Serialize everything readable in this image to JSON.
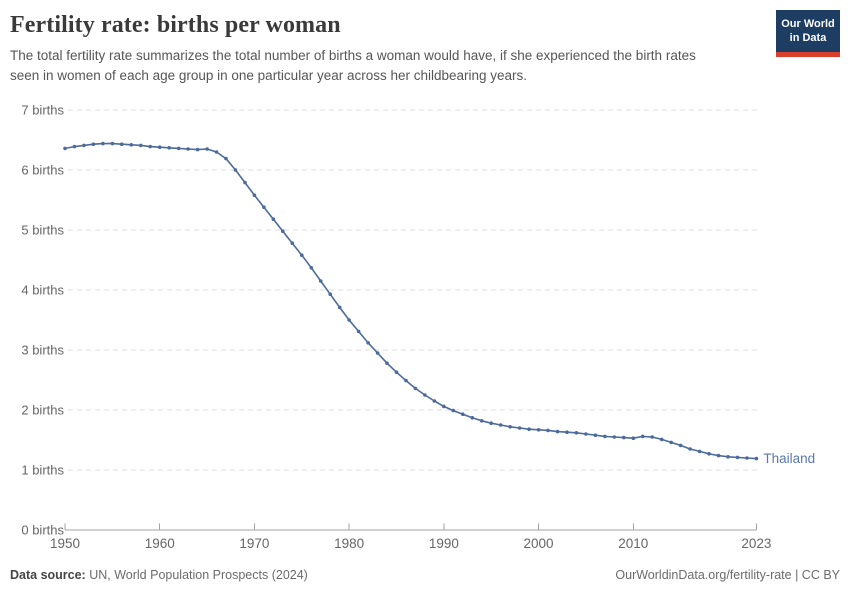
{
  "header": {
    "title": "Fertility rate: births per woman",
    "subtitle": "The total fertility rate summarizes the total number of births a woman would have, if she experienced the birth rates seen in women of each age group in one particular year across her childbearing years."
  },
  "logo": {
    "line1": "Our World",
    "line2": "in Data"
  },
  "footer": {
    "datasource_label": "Data source:",
    "datasource_text": "UN, World Population Prospects (2024)",
    "rights": "OurWorldinData.org/fertility-rate | CC BY"
  },
  "colors": {
    "line": "#4c6a9c",
    "entity_label": "#5879ae",
    "grid": "#dcdcdc",
    "axis": "#a1a1a1",
    "text_muted": "#666666",
    "logo_bg": "#1d3d63",
    "logo_bar": "#d93d2c"
  },
  "chart_data": {
    "type": "line",
    "title": "Fertility rate: births per woman",
    "xlabel": "",
    "ylabel": "births",
    "xlim": [
      1950,
      2023
    ],
    "ylim": [
      0,
      7
    ],
    "grid": "horizontal-dashed",
    "legend_position": "end-of-line-label",
    "end_label": "Thailand",
    "x_ticks": [
      {
        "value": 1950,
        "label": "1950"
      },
      {
        "value": 1960,
        "label": "1960"
      },
      {
        "value": 1970,
        "label": "1970"
      },
      {
        "value": 1980,
        "label": "1980"
      },
      {
        "value": 1990,
        "label": "1990"
      },
      {
        "value": 2000,
        "label": "2000"
      },
      {
        "value": 2010,
        "label": "2010"
      },
      {
        "value": 2023,
        "label": "2023"
      }
    ],
    "y_ticks": [
      {
        "value": 0,
        "label": "0 births"
      },
      {
        "value": 1,
        "label": "1 births"
      },
      {
        "value": 2,
        "label": "2 births"
      },
      {
        "value": 3,
        "label": "3 births"
      },
      {
        "value": 4,
        "label": "4 births"
      },
      {
        "value": 5,
        "label": "5 births"
      },
      {
        "value": 6,
        "label": "6 births"
      },
      {
        "value": 7,
        "label": "7 births"
      }
    ],
    "x": [
      1950,
      1951,
      1952,
      1953,
      1954,
      1955,
      1956,
      1957,
      1958,
      1959,
      1960,
      1961,
      1962,
      1963,
      1964,
      1965,
      1966,
      1967,
      1968,
      1969,
      1970,
      1971,
      1972,
      1973,
      1974,
      1975,
      1976,
      1977,
      1978,
      1979,
      1980,
      1981,
      1982,
      1983,
      1984,
      1985,
      1986,
      1987,
      1988,
      1989,
      1990,
      1991,
      1992,
      1993,
      1994,
      1995,
      1996,
      1997,
      1998,
      1999,
      2000,
      2001,
      2002,
      2003,
      2004,
      2005,
      2006,
      2007,
      2008,
      2009,
      2010,
      2011,
      2012,
      2013,
      2014,
      2015,
      2016,
      2017,
      2018,
      2019,
      2020,
      2021,
      2022,
      2023
    ],
    "series": [
      {
        "name": "Thailand",
        "values": [
          6.36,
          6.39,
          6.41,
          6.43,
          6.44,
          6.44,
          6.43,
          6.42,
          6.41,
          6.39,
          6.38,
          6.37,
          6.36,
          6.35,
          6.34,
          6.35,
          6.3,
          6.19,
          6.0,
          5.79,
          5.58,
          5.38,
          5.18,
          4.98,
          4.78,
          4.58,
          4.37,
          4.15,
          3.93,
          3.71,
          3.5,
          3.31,
          3.12,
          2.95,
          2.78,
          2.63,
          2.49,
          2.36,
          2.25,
          2.15,
          2.06,
          1.99,
          1.93,
          1.87,
          1.82,
          1.78,
          1.75,
          1.72,
          1.7,
          1.68,
          1.67,
          1.66,
          1.64,
          1.63,
          1.62,
          1.6,
          1.58,
          1.56,
          1.55,
          1.54,
          1.53,
          1.56,
          1.55,
          1.51,
          1.46,
          1.41,
          1.35,
          1.31,
          1.27,
          1.24,
          1.22,
          1.21,
          1.2,
          1.19
        ]
      }
    ]
  }
}
